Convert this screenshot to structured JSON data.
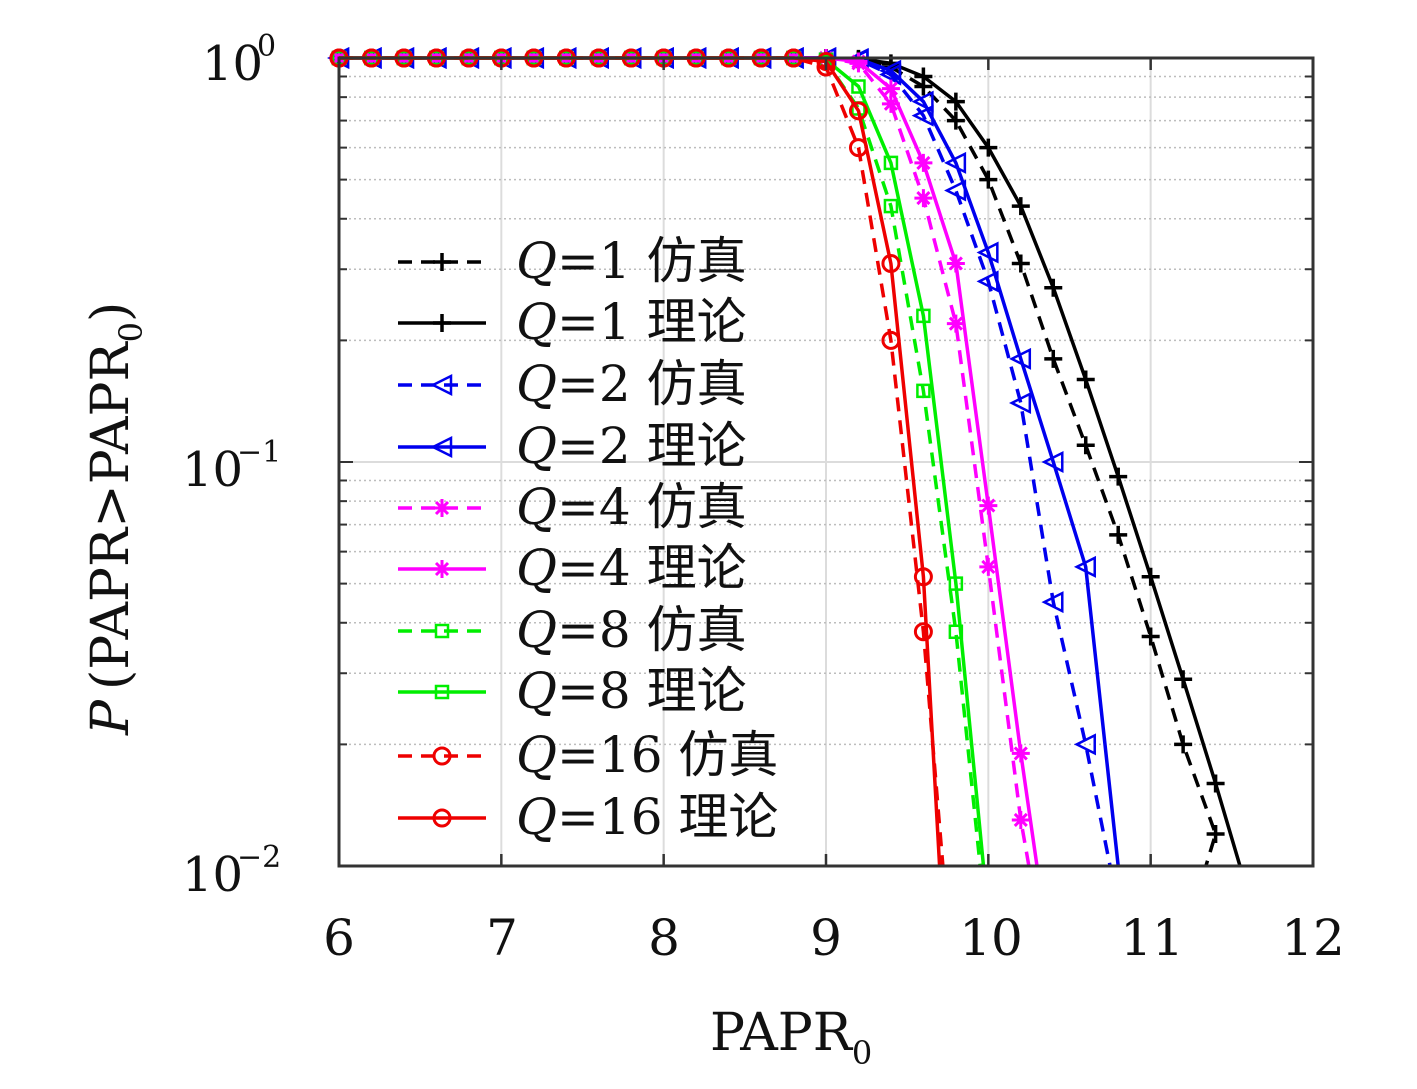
{
  "chart_data": {
    "type": "line",
    "xlabel": "PAPR",
    "xlabel_sub": "0",
    "ylabel": {
      "prefix": "P",
      "body": "(PAPR>PAPR",
      "sub": "0",
      "suffix": ")"
    },
    "xlim": [
      6,
      12
    ],
    "ylim": [
      0.01,
      1
    ],
    "yscale": "log",
    "grid": true,
    "legend_position": "left",
    "x_ticks": [
      "6",
      "7",
      "8",
      "9",
      "10",
      "11",
      "12"
    ],
    "y_ticks": [
      {
        "base": "10",
        "exp": "0",
        "value": 1
      },
      {
        "base": "10",
        "exp": "−1",
        "value": 0.1
      },
      {
        "base": "10",
        "exp": "−2",
        "value": 0.01
      }
    ],
    "series": [
      {
        "name": "Q=1 仿真",
        "q_label": "Q",
        "rest_label": "=1 仿真",
        "color": "#000000",
        "dash": true,
        "marker": "plus",
        "x": [
          6,
          6.2,
          6.4,
          6.6,
          6.8,
          7,
          7.2,
          7.4,
          7.6,
          7.8,
          8,
          8.2,
          8.4,
          8.6,
          8.8,
          9,
          9.2,
          9.4,
          9.6,
          9.8,
          10,
          10.2,
          10.4,
          10.6,
          10.8,
          11,
          11.2,
          11.4,
          11.34
        ],
        "y": [
          1,
          1,
          1,
          1,
          1,
          1,
          1,
          1,
          1,
          1,
          1,
          1,
          1,
          1,
          1,
          1,
          0.99,
          0.95,
          0.85,
          0.7,
          0.5,
          0.31,
          0.18,
          0.11,
          0.066,
          0.037,
          0.02,
          0.012,
          0.01
        ]
      },
      {
        "name": "Q=1 理论",
        "q_label": "Q",
        "rest_label": "=1 理论",
        "color": "#000000",
        "dash": false,
        "marker": "plus",
        "x": [
          6,
          6.2,
          6.4,
          6.6,
          6.8,
          7,
          7.2,
          7.4,
          7.6,
          7.8,
          8,
          8.2,
          8.4,
          8.6,
          8.8,
          9,
          9.2,
          9.4,
          9.6,
          9.8,
          10,
          10.2,
          10.4,
          10.6,
          10.8,
          11,
          11.2,
          11.4,
          11.55
        ],
        "y": [
          1,
          1,
          1,
          1,
          1,
          1,
          1,
          1,
          1,
          1,
          1,
          1,
          1,
          1,
          1,
          1,
          0.995,
          0.97,
          0.9,
          0.78,
          0.6,
          0.43,
          0.27,
          0.16,
          0.092,
          0.052,
          0.029,
          0.016,
          0.01
        ]
      },
      {
        "name": "Q=2 仿真",
        "q_label": "Q",
        "rest_label": "=2 仿真",
        "color": "#0000ee",
        "dash": true,
        "marker": "triangle",
        "x": [
          6,
          6.2,
          6.4,
          6.6,
          6.8,
          7,
          7.2,
          7.4,
          7.6,
          7.8,
          8,
          8.2,
          8.4,
          8.6,
          8.8,
          9,
          9.2,
          9.4,
          9.6,
          9.8,
          10,
          10.2,
          10.4,
          10.6,
          10.75
        ],
        "y": [
          1,
          1,
          1,
          1,
          1,
          1,
          1,
          1,
          1,
          1,
          1,
          1,
          1,
          1,
          1,
          1,
          0.99,
          0.91,
          0.72,
          0.47,
          0.28,
          0.14,
          0.045,
          0.02,
          0.01
        ]
      },
      {
        "name": "Q=2 理论",
        "q_label": "Q",
        "rest_label": "=2 理论",
        "color": "#0000ee",
        "dash": false,
        "marker": "triangle",
        "x": [
          6,
          6.2,
          6.4,
          6.6,
          6.8,
          7,
          7.2,
          7.4,
          7.6,
          7.8,
          8,
          8.2,
          8.4,
          8.6,
          8.8,
          9,
          9.2,
          9.4,
          9.6,
          9.8,
          10,
          10.2,
          10.4,
          10.6,
          10.8
        ],
        "y": [
          1,
          1,
          1,
          1,
          1,
          1,
          1,
          1,
          1,
          1,
          1,
          1,
          1,
          1,
          1,
          1,
          0.995,
          0.93,
          0.78,
          0.55,
          0.33,
          0.18,
          0.1,
          0.055,
          0.01
        ]
      },
      {
        "name": "Q=4 仿真",
        "q_label": "Q",
        "rest_label": "=4 仿真",
        "color": "#ff00ff",
        "dash": true,
        "marker": "star",
        "x": [
          6,
          6.2,
          6.4,
          6.6,
          6.8,
          7,
          7.2,
          7.4,
          7.6,
          7.8,
          8,
          8.2,
          8.4,
          8.6,
          8.8,
          9,
          9.2,
          9.4,
          9.6,
          9.8,
          10,
          10.2,
          10.25
        ],
        "y": [
          1,
          1,
          1,
          1,
          1,
          1,
          1,
          1,
          1,
          1,
          1,
          1,
          1,
          1,
          1,
          1,
          0.97,
          0.77,
          0.45,
          0.22,
          0.055,
          0.013,
          0.01
        ]
      },
      {
        "name": "Q=4 理论",
        "q_label": "Q",
        "rest_label": "=4 理论",
        "color": "#ff00ff",
        "dash": false,
        "marker": "star",
        "x": [
          6,
          6.2,
          6.4,
          6.6,
          6.8,
          7,
          7.2,
          7.4,
          7.6,
          7.8,
          8,
          8.2,
          8.4,
          8.6,
          8.8,
          9,
          9.2,
          9.4,
          9.6,
          9.8,
          10,
          10.2,
          10.3
        ],
        "y": [
          1,
          1,
          1,
          1,
          1,
          1,
          1,
          1,
          1,
          1,
          1,
          1,
          1,
          1,
          1,
          1,
          0.98,
          0.84,
          0.55,
          0.31,
          0.078,
          0.019,
          0.01
        ]
      },
      {
        "name": "Q=8 仿真",
        "q_label": "Q",
        "rest_label": "=8 仿真",
        "color": "#00ee00",
        "dash": true,
        "marker": "square",
        "x": [
          6,
          6.2,
          6.4,
          6.6,
          6.8,
          7,
          7.2,
          7.4,
          7.6,
          7.8,
          8,
          8.2,
          8.4,
          8.6,
          8.8,
          9,
          9.2,
          9.4,
          9.6,
          9.8,
          9.95
        ],
        "y": [
          1,
          1,
          1,
          1,
          1,
          1,
          1,
          1,
          1,
          1,
          1,
          1,
          1,
          1,
          1,
          0.98,
          0.75,
          0.43,
          0.15,
          0.038,
          0.01
        ]
      },
      {
        "name": "Q=8 理论",
        "q_label": "Q",
        "rest_label": "=8 理论",
        "color": "#00ee00",
        "dash": false,
        "marker": "square",
        "x": [
          6,
          6.2,
          6.4,
          6.6,
          6.8,
          7,
          7.2,
          7.4,
          7.6,
          7.8,
          8,
          8.2,
          8.4,
          8.6,
          8.8,
          9,
          9.2,
          9.4,
          9.6,
          9.8,
          9.97
        ],
        "y": [
          1,
          1,
          1,
          1,
          1,
          1,
          1,
          1,
          1,
          1,
          1,
          1,
          1,
          1,
          1,
          0.99,
          0.85,
          0.55,
          0.23,
          0.05,
          0.01
        ]
      },
      {
        "name": "Q=16 仿真",
        "q_label": "Q",
        "rest_label": "=16 仿真",
        "color": "#ee0000",
        "dash": true,
        "marker": "circle",
        "x": [
          6,
          6.2,
          6.4,
          6.6,
          6.8,
          7,
          7.2,
          7.4,
          7.6,
          7.8,
          8,
          8.2,
          8.4,
          8.6,
          8.8,
          9,
          9.2,
          9.4,
          9.6,
          9.72
        ],
        "y": [
          1,
          1,
          1,
          1,
          1,
          1,
          1,
          1,
          1,
          1,
          1,
          1,
          1,
          1,
          1,
          0.95,
          0.6,
          0.2,
          0.038,
          0.01
        ]
      },
      {
        "name": "Q=16 理论",
        "q_label": "Q",
        "rest_label": "=16 理论",
        "color": "#ee0000",
        "dash": false,
        "marker": "circle",
        "x": [
          6,
          6.2,
          6.4,
          6.6,
          6.8,
          7,
          7.2,
          7.4,
          7.6,
          7.8,
          8,
          8.2,
          8.4,
          8.6,
          8.8,
          9,
          9.2,
          9.4,
          9.6,
          9.7
        ],
        "y": [
          1,
          1,
          1,
          1,
          1,
          1,
          1,
          1,
          1,
          1,
          1,
          1,
          1,
          1,
          1,
          0.98,
          0.74,
          0.31,
          0.052,
          0.01
        ]
      }
    ]
  }
}
